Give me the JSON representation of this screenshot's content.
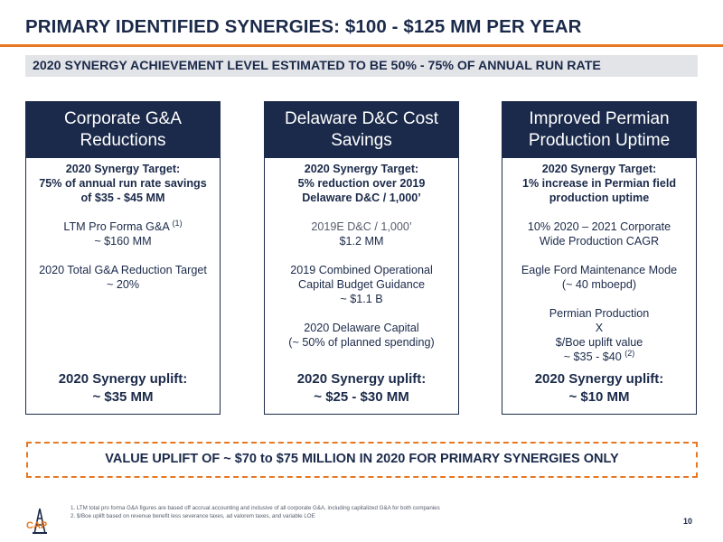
{
  "header": {
    "title": "PRIMARY IDENTIFIED SYNERGIES: $100 - $125 MM PER YEAR",
    "subtitle": "2020 SYNERGY ACHIEVEMENT LEVEL ESTIMATED TO BE 50% - 75% OF ANNUAL RUN RATE"
  },
  "columns": [
    {
      "heading": [
        "Corporate G&A",
        "Reductions"
      ],
      "target_label": "2020 Synergy Target:",
      "target_lines": [
        "75% of annual run rate savings",
        "of $35 - $45 MM"
      ],
      "item1": {
        "text": "LTM Pro Forma G&A",
        "sup": "(1)",
        "line2": "~ $160 MM"
      },
      "item2": [
        "2020 Total G&A Reduction Target",
        "~ 20%"
      ],
      "uplift_label": "2020 Synergy uplift:",
      "uplift_value": "~ $35 MM"
    },
    {
      "heading": [
        "Delaware D&C Cost",
        "Savings"
      ],
      "target_label": "2020 Synergy Target:",
      "target_lines": [
        "5% reduction over 2019",
        "Delaware D&C / 1,000’"
      ],
      "item1": {
        "text": "2019E D&C / 1,000’",
        "line2": "$1.2 MM"
      },
      "item2": [
        "2019 Combined Operational",
        "Capital Budget Guidance",
        "~ $1.1 B"
      ],
      "item3": [
        "2020 Delaware Capital",
        "(~ 50% of planned spending)"
      ],
      "uplift_label": "2020 Synergy uplift:",
      "uplift_value": "~ $25 - $30 MM"
    },
    {
      "heading": [
        "Improved Permian",
        "Production Uptime"
      ],
      "target_label": "2020 Synergy Target:",
      "target_lines": [
        "1% increase in Permian field",
        "production uptime"
      ],
      "item1": [
        "10% 2020 – 2021 Corporate",
        "Wide Production CAGR"
      ],
      "item2": [
        "Eagle Ford Maintenance Mode",
        "(~ 40 mboepd)"
      ],
      "item3": {
        "lines": [
          "Permian Production",
          "X",
          "$/Boe uplift value"
        ],
        "last": "~ $35 - $40",
        "sup": "(2)"
      },
      "uplift_label": "2020 Synergy uplift:",
      "uplift_value": "~ $10 MM"
    }
  ],
  "value_box": "VALUE UPLIFT OF ~ $70 to $75 MILLION IN 2020 FOR PRIMARY SYNERGIES ONLY",
  "footnotes": [
    "1.   LTM total pro forma G&A figures are based off accrual accounting and inclusive of all corporate G&A, including capitalized G&A for both companies",
    "2.   $/Boe uplift based on revenue benefit less severance taxes, ad valorem taxes, and variable LOE"
  ],
  "logo": {
    "text": "CAP",
    "icon": "oil-derrick-logo-icon"
  },
  "page_number": "10",
  "colors": {
    "navy": "#1b2a4a",
    "orange": "#e87722",
    "gray_bar": "#e3e4e8"
  }
}
